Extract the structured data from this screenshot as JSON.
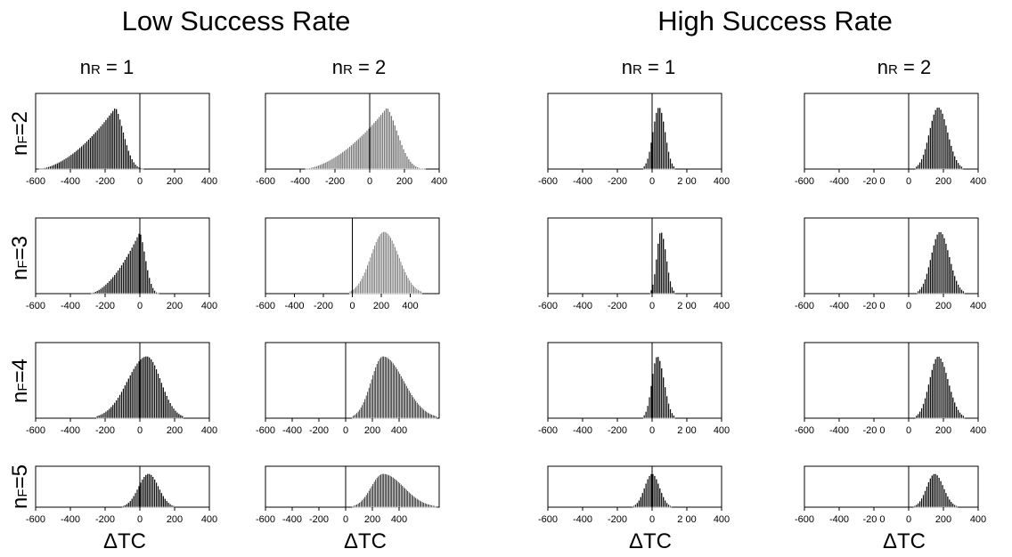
{
  "groups": [
    {
      "title": "Low Success Rate"
    },
    {
      "title": "High Success Rate"
    }
  ],
  "columns": [
    {
      "main": "n",
      "sub": "R",
      "value": " = 1"
    },
    {
      "main": "n",
      "sub": "R",
      "value": " = 2"
    },
    {
      "main": "n",
      "sub": "R",
      "value": " = 1"
    },
    {
      "main": "n",
      "sub": "R",
      "value": " = 2"
    }
  ],
  "rows": [
    {
      "main": "n",
      "sub": "F",
      "value": "=2"
    },
    {
      "main": "n",
      "sub": "F",
      "value": "=3"
    },
    {
      "main": "n",
      "sub": "F",
      "value": "=4"
    },
    {
      "main": "n",
      "sub": "F",
      "value": "=5"
    }
  ],
  "xlabels": [
    "ΔTC",
    "ΔTC",
    "ΔTC",
    "ΔTC"
  ],
  "colors": {
    "bar_dark": "#111111",
    "bar_gray": "#777777",
    "axis": "#000000"
  },
  "chart_data": [
    {
      "type": "histogram",
      "row": 0,
      "col": 0,
      "xlim": [
        -600,
        400
      ],
      "ticks": [
        "-600",
        "-400",
        "-200",
        "0",
        "200",
        "400"
      ],
      "tick_values": [
        -600,
        -400,
        -200,
        0,
        200,
        400
      ],
      "dist": {
        "shape": "left-skewed",
        "mode": -140,
        "min": -600,
        "max": 50
      },
      "style": "dark"
    },
    {
      "type": "histogram",
      "row": 0,
      "col": 1,
      "xlim": [
        -600,
        400
      ],
      "ticks": [
        "-600",
        "-400",
        "-200",
        "0",
        "200",
        "400"
      ],
      "tick_values": [
        -600,
        -400,
        -200,
        0,
        200,
        400
      ],
      "dist": {
        "shape": "left-skewed",
        "mode": 100,
        "min": -400,
        "max": 350
      },
      "style": "gray"
    },
    {
      "type": "histogram",
      "row": 0,
      "col": 2,
      "xlim": [
        -600,
        400
      ],
      "ticks": [
        "-600",
        "-400",
        "-200",
        "0",
        "2 00",
        "400"
      ],
      "tick_values": [
        -600,
        -400,
        -200,
        0,
        200,
        400
      ],
      "dist": {
        "shape": "normal",
        "mode": 40,
        "min": -50,
        "max": 130
      },
      "style": "dark"
    },
    {
      "type": "histogram",
      "row": 0,
      "col": 3,
      "xlim": [
        -600,
        400
      ],
      "ticks": [
        "-600",
        "-400",
        "-20 0",
        "0",
        "200",
        "400"
      ],
      "tick_values": [
        -600,
        -400,
        -200,
        0,
        200,
        400
      ],
      "dist": {
        "shape": "normal",
        "mode": 170,
        "min": 40,
        "max": 310
      },
      "style": "dark"
    },
    {
      "type": "histogram",
      "row": 1,
      "col": 0,
      "xlim": [
        -600,
        400
      ],
      "ticks": [
        "-600",
        "-400",
        "-200",
        "0",
        "200",
        "400"
      ],
      "tick_values": [
        -600,
        -400,
        -200,
        0,
        200,
        400
      ],
      "dist": {
        "shape": "left-skewed",
        "mode": 0,
        "min": -300,
        "max": 130
      },
      "style": "dark"
    },
    {
      "type": "histogram",
      "row": 1,
      "col": 1,
      "xlim": [
        -600,
        600
      ],
      "ticks": [
        "-600",
        "-400",
        "-200",
        "0",
        "200",
        "400"
      ],
      "tick_values": [
        -600,
        -400,
        -200,
        0,
        200,
        400
      ],
      "dist": {
        "shape": "normal",
        "mode": 220,
        "min": -20,
        "max": 480
      },
      "style": "gray"
    },
    {
      "type": "histogram",
      "row": 1,
      "col": 2,
      "xlim": [
        -600,
        400
      ],
      "ticks": [
        "-600",
        "-400",
        "-200",
        "0",
        "2 00",
        "400"
      ],
      "tick_values": [
        -600,
        -400,
        -200,
        0,
        200,
        400
      ],
      "dist": {
        "shape": "normal",
        "mode": 50,
        "min": -10,
        "max": 130
      },
      "style": "dark"
    },
    {
      "type": "histogram",
      "row": 1,
      "col": 3,
      "xlim": [
        -600,
        400
      ],
      "ticks": [
        "-600",
        "-400",
        "-20 0",
        "0",
        "200",
        "400"
      ],
      "tick_values": [
        -600,
        -400,
        -200,
        0,
        200,
        400
      ],
      "dist": {
        "shape": "normal",
        "mode": 180,
        "min": 50,
        "max": 320
      },
      "style": "dark"
    },
    {
      "type": "histogram",
      "row": 2,
      "col": 0,
      "xlim": [
        -600,
        400
      ],
      "ticks": [
        "-600",
        "-400",
        "-200",
        "0",
        "200",
        "400"
      ],
      "tick_values": [
        -600,
        -400,
        -200,
        0,
        200,
        400
      ],
      "dist": {
        "shape": "normal",
        "mode": 40,
        "min": -250,
        "max": 250
      },
      "style": "dark"
    },
    {
      "type": "histogram",
      "row": 2,
      "col": 1,
      "xlim": [
        -600,
        700
      ],
      "ticks": [
        "-600",
        "-400",
        "-200",
        "0",
        "200",
        "400"
      ],
      "tick_values": [
        -600,
        -400,
        -200,
        0,
        200,
        400
      ],
      "dist": {
        "shape": "normal",
        "mode": 280,
        "min": 50,
        "max": 680
      },
      "style": "dark"
    },
    {
      "type": "histogram",
      "row": 2,
      "col": 2,
      "xlim": [
        -600,
        400
      ],
      "ticks": [
        "-600",
        "-400",
        "-200",
        "0",
        "2 00",
        "400"
      ],
      "tick_values": [
        -600,
        -400,
        -200,
        0,
        200,
        400
      ],
      "dist": {
        "shape": "normal",
        "mode": 30,
        "min": -50,
        "max": 130
      },
      "style": "dark"
    },
    {
      "type": "histogram",
      "row": 2,
      "col": 3,
      "xlim": [
        -600,
        400
      ],
      "ticks": [
        "-600",
        "-400",
        "-20 0",
        "0",
        "200",
        "400"
      ],
      "tick_values": [
        -600,
        -400,
        -200,
        0,
        200,
        400
      ],
      "dist": {
        "shape": "normal",
        "mode": 170,
        "min": 40,
        "max": 320
      },
      "style": "dark"
    },
    {
      "type": "histogram",
      "row": 3,
      "col": 0,
      "xlim": [
        -600,
        400
      ],
      "ticks": [
        "-600",
        "-400",
        "-200",
        "0",
        "200",
        "400"
      ],
      "tick_values": [
        -600,
        -400,
        -200,
        0,
        200,
        400
      ],
      "dist": {
        "shape": "normal",
        "mode": 50,
        "min": -100,
        "max": 200
      },
      "style": "dark"
    },
    {
      "type": "histogram",
      "row": 3,
      "col": 1,
      "xlim": [
        -600,
        700
      ],
      "ticks": [
        "-600",
        "-400",
        "-200",
        "0",
        "200",
        "400"
      ],
      "tick_values": [
        -600,
        -400,
        -200,
        0,
        200,
        400
      ],
      "dist": {
        "shape": "normal",
        "mode": 280,
        "min": 50,
        "max": 680
      },
      "style": "dark"
    },
    {
      "type": "histogram",
      "row": 3,
      "col": 2,
      "xlim": [
        -600,
        400
      ],
      "ticks": [
        "-600",
        "-400",
        "-200",
        "0",
        "2 00",
        "400"
      ],
      "tick_values": [
        -600,
        -400,
        -200,
        0,
        200,
        400
      ],
      "dist": {
        "shape": "normal",
        "mode": 0,
        "min": -110,
        "max": 110
      },
      "style": "dark"
    },
    {
      "type": "histogram",
      "row": 3,
      "col": 3,
      "xlim": [
        -600,
        400
      ],
      "ticks": [
        "-600",
        "-400",
        "-20 0",
        "0",
        "200",
        "400"
      ],
      "tick_values": [
        -600,
        -400,
        -200,
        0,
        200,
        400
      ],
      "dist": {
        "shape": "normal",
        "mode": 150,
        "min": 30,
        "max": 280
      },
      "style": "dark"
    }
  ]
}
